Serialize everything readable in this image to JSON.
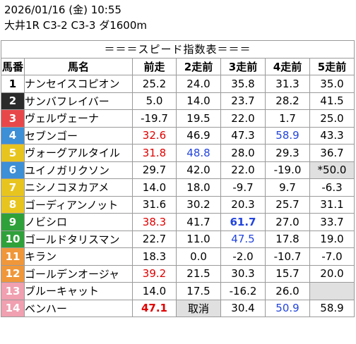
{
  "header": {
    "date_line": "2026/01/16 (金) 10:55",
    "race_line": "大井1R C3-2 C3-3 ダ1600m"
  },
  "table": {
    "title": "＝＝＝スピード指数表＝＝＝",
    "headers": [
      "馬番",
      "馬名",
      "前走",
      "2走前",
      "3走前",
      "4走前",
      "5走前"
    ],
    "rows": [
      {
        "num": "1",
        "name": "ナンセイスコピオン",
        "bg": "#ffffff",
        "fg": "#000000",
        "vals": [
          {
            "t": "25.2"
          },
          {
            "t": "24.0"
          },
          {
            "t": "35.8"
          },
          {
            "t": "31.3"
          },
          {
            "t": "35.0"
          }
        ]
      },
      {
        "num": "2",
        "name": "サンバフレイバー",
        "bg": "#2b2b2b",
        "fg": "#ffffff",
        "vals": [
          {
            "t": "5.0"
          },
          {
            "t": "14.0"
          },
          {
            "t": "23.7"
          },
          {
            "t": "28.2"
          },
          {
            "t": "41.5"
          }
        ]
      },
      {
        "num": "3",
        "name": "ヴェルヴェーナ",
        "bg": "#e8474a",
        "fg": "#ffffff",
        "vals": [
          {
            "t": "-19.7"
          },
          {
            "t": "19.5"
          },
          {
            "t": "22.0"
          },
          {
            "t": "1.7"
          },
          {
            "t": "25.0"
          }
        ]
      },
      {
        "num": "4",
        "name": "セブンゴー",
        "bg": "#3d8fd6",
        "fg": "#ffffff",
        "vals": [
          {
            "t": "32.6",
            "c": "red"
          },
          {
            "t": "46.9"
          },
          {
            "t": "47.3"
          },
          {
            "t": "58.9",
            "c": "blue"
          },
          {
            "t": "43.3"
          }
        ]
      },
      {
        "num": "5",
        "name": "ヴォーグアルタイル",
        "bg": "#e8c51e",
        "fg": "#ffffff",
        "vals": [
          {
            "t": "31.8",
            "c": "red"
          },
          {
            "t": "48.8",
            "c": "blue"
          },
          {
            "t": "28.0"
          },
          {
            "t": "29.3"
          },
          {
            "t": "36.7"
          }
        ]
      },
      {
        "num": "6",
        "name": "ユイノガリクソン",
        "bg": "#3d8fd6",
        "fg": "#ffffff",
        "vals": [
          {
            "t": "29.7"
          },
          {
            "t": "42.0"
          },
          {
            "t": "22.0"
          },
          {
            "t": "-19.0"
          },
          {
            "t": "*50.0",
            "g": true
          }
        ]
      },
      {
        "num": "7",
        "name": "ニシノコヌカアメ",
        "bg": "#e8c51e",
        "fg": "#ffffff",
        "vals": [
          {
            "t": "14.0"
          },
          {
            "t": "18.0"
          },
          {
            "t": "-9.7"
          },
          {
            "t": "9.7"
          },
          {
            "t": "-6.3"
          }
        ]
      },
      {
        "num": "8",
        "name": "ゴーディアンノット",
        "bg": "#e8c51e",
        "fg": "#ffffff",
        "vals": [
          {
            "t": "31.6"
          },
          {
            "t": "30.2"
          },
          {
            "t": "20.3"
          },
          {
            "t": "25.7"
          },
          {
            "t": "31.1"
          }
        ]
      },
      {
        "num": "9",
        "name": "ノビシロ",
        "bg": "#2fa13a",
        "fg": "#ffffff",
        "vals": [
          {
            "t": "38.3",
            "c": "red"
          },
          {
            "t": "41.7"
          },
          {
            "t": "61.7",
            "c": "blue",
            "b": true
          },
          {
            "t": "27.0"
          },
          {
            "t": "33.7"
          }
        ]
      },
      {
        "num": "10",
        "name": "ゴールドタリスマン",
        "bg": "#2fa13a",
        "fg": "#ffffff",
        "vals": [
          {
            "t": "22.7"
          },
          {
            "t": "11.0"
          },
          {
            "t": "47.5",
            "c": "blue"
          },
          {
            "t": "17.8"
          },
          {
            "t": "19.0"
          }
        ]
      },
      {
        "num": "11",
        "name": "キラン",
        "bg": "#f0973a",
        "fg": "#ffffff",
        "vals": [
          {
            "t": "18.3"
          },
          {
            "t": "0.0"
          },
          {
            "t": "-2.0"
          },
          {
            "t": "-10.7"
          },
          {
            "t": "-7.0"
          }
        ]
      },
      {
        "num": "12",
        "name": "ゴールデンオージャ",
        "bg": "#f0973a",
        "fg": "#ffffff",
        "vals": [
          {
            "t": "39.2",
            "c": "red"
          },
          {
            "t": "21.5"
          },
          {
            "t": "30.3"
          },
          {
            "t": "15.7"
          },
          {
            "t": "20.0"
          }
        ]
      },
      {
        "num": "13",
        "name": "ブルーキャット",
        "bg": "#f0a0b0",
        "fg": "#ffffff",
        "vals": [
          {
            "t": "14.0"
          },
          {
            "t": "17.5"
          },
          {
            "t": "-16.2"
          },
          {
            "t": "26.0"
          },
          {
            "t": "",
            "g": true
          }
        ]
      },
      {
        "num": "14",
        "name": "ベンハー",
        "bg": "#f0a0b0",
        "fg": "#ffffff",
        "vals": [
          {
            "t": "47.1",
            "c": "red",
            "b": true
          },
          {
            "t": "取消",
            "g": true
          },
          {
            "t": "30.4"
          },
          {
            "t": "50.9",
            "c": "blue"
          },
          {
            "t": "58.9"
          }
        ]
      }
    ]
  }
}
